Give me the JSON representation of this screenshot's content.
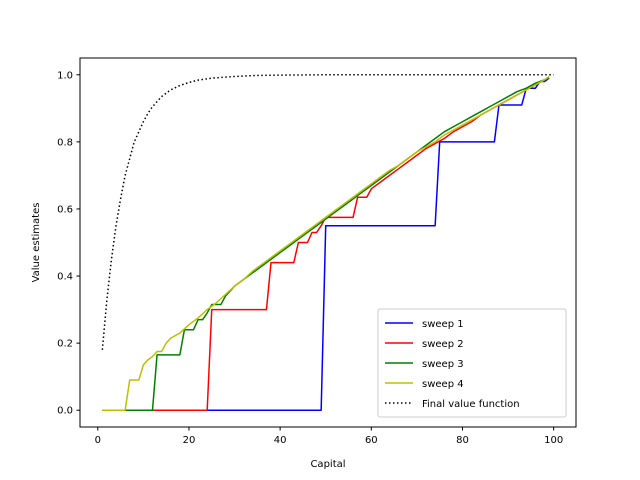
{
  "chart_data": {
    "type": "line",
    "title": "",
    "xlabel": "Capital",
    "ylabel": "Value estimates",
    "xlim": [
      -3.9,
      104.9
    ],
    "ylim": [
      -0.05,
      1.05
    ],
    "xticks": [
      0,
      20,
      40,
      60,
      80,
      100
    ],
    "yticks": [
      0.0,
      0.2,
      0.4,
      0.6,
      0.8,
      1.0
    ],
    "xtick_labels": [
      "0",
      "20",
      "40",
      "60",
      "80",
      "100"
    ],
    "ytick_labels": [
      "0.0",
      "0.2",
      "0.4",
      "0.6",
      "0.8",
      "1.0"
    ],
    "grid": false,
    "legend_position": "lower-right",
    "series": [
      {
        "name": "sweep 1",
        "color": "#0000ff",
        "style": "solid",
        "points": [
          [
            1,
            0
          ],
          [
            49,
            0
          ],
          [
            50,
            0.55
          ],
          [
            74,
            0.55
          ],
          [
            75,
            0.8
          ],
          [
            87,
            0.8
          ],
          [
            88,
            0.91
          ],
          [
            93,
            0.91
          ],
          [
            94,
            0.96
          ],
          [
            96,
            0.96
          ],
          [
            97,
            0.98
          ],
          [
            98,
            0.98
          ],
          [
            99,
            0.99
          ]
        ]
      },
      {
        "name": "sweep 2",
        "color": "#ff0000",
        "style": "solid",
        "points": [
          [
            1,
            0
          ],
          [
            24,
            0
          ],
          [
            25,
            0.3
          ],
          [
            37,
            0.3
          ],
          [
            38,
            0.44
          ],
          [
            43,
            0.44
          ],
          [
            44,
            0.5
          ],
          [
            46,
            0.5
          ],
          [
            47,
            0.53
          ],
          [
            48,
            0.53
          ],
          [
            49,
            0.55
          ],
          [
            50,
            0.575
          ],
          [
            56,
            0.575
          ],
          [
            57,
            0.635
          ],
          [
            59,
            0.635
          ],
          [
            60,
            0.66
          ],
          [
            62,
            0.68
          ],
          [
            64,
            0.7
          ],
          [
            66,
            0.72
          ],
          [
            68,
            0.74
          ],
          [
            70,
            0.76
          ],
          [
            72,
            0.78
          ],
          [
            74,
            0.795
          ],
          [
            76,
            0.81
          ],
          [
            78,
            0.83
          ],
          [
            80,
            0.845
          ],
          [
            82,
            0.86
          ],
          [
            84,
            0.88
          ],
          [
            86,
            0.895
          ],
          [
            88,
            0.91
          ],
          [
            90,
            0.925
          ],
          [
            92,
            0.94
          ],
          [
            94,
            0.955
          ],
          [
            96,
            0.97
          ],
          [
            98,
            0.985
          ],
          [
            99,
            0.99
          ]
        ]
      },
      {
        "name": "sweep 3",
        "color": "#008000",
        "style": "solid",
        "points": [
          [
            1,
            0
          ],
          [
            12,
            0
          ],
          [
            13,
            0.165
          ],
          [
            18,
            0.165
          ],
          [
            19,
            0.24
          ],
          [
            21,
            0.24
          ],
          [
            22,
            0.27
          ],
          [
            23,
            0.27
          ],
          [
            24,
            0.29
          ],
          [
            25,
            0.315
          ],
          [
            27,
            0.315
          ],
          [
            28,
            0.34
          ],
          [
            30,
            0.37
          ],
          [
            32,
            0.39
          ],
          [
            34,
            0.41
          ],
          [
            36,
            0.43
          ],
          [
            38,
            0.45
          ],
          [
            40,
            0.47
          ],
          [
            42,
            0.49
          ],
          [
            44,
            0.51
          ],
          [
            46,
            0.53
          ],
          [
            48,
            0.55
          ],
          [
            50,
            0.57
          ],
          [
            52,
            0.59
          ],
          [
            54,
            0.61
          ],
          [
            56,
            0.63
          ],
          [
            58,
            0.65
          ],
          [
            60,
            0.67
          ],
          [
            62,
            0.69
          ],
          [
            64,
            0.71
          ],
          [
            66,
            0.73
          ],
          [
            68,
            0.75
          ],
          [
            70,
            0.77
          ],
          [
            72,
            0.79
          ],
          [
            74,
            0.81
          ],
          [
            76,
            0.83
          ],
          [
            78,
            0.845
          ],
          [
            80,
            0.86
          ],
          [
            82,
            0.875
          ],
          [
            84,
            0.89
          ],
          [
            86,
            0.905
          ],
          [
            88,
            0.92
          ],
          [
            90,
            0.935
          ],
          [
            92,
            0.95
          ],
          [
            94,
            0.96
          ],
          [
            96,
            0.975
          ],
          [
            98,
            0.985
          ],
          [
            99,
            0.99
          ]
        ]
      },
      {
        "name": "sweep 4",
        "color": "#bfbf00",
        "style": "solid",
        "points": [
          [
            1,
            0
          ],
          [
            6,
            0
          ],
          [
            7,
            0.09
          ],
          [
            9,
            0.09
          ],
          [
            10,
            0.135
          ],
          [
            11,
            0.15
          ],
          [
            12,
            0.16
          ],
          [
            13,
            0.175
          ],
          [
            14,
            0.175
          ],
          [
            15,
            0.2
          ],
          [
            16,
            0.215
          ],
          [
            18,
            0.23
          ],
          [
            20,
            0.255
          ],
          [
            22,
            0.275
          ],
          [
            24,
            0.3
          ],
          [
            26,
            0.32
          ],
          [
            28,
            0.345
          ],
          [
            30,
            0.37
          ],
          [
            32,
            0.39
          ],
          [
            34,
            0.415
          ],
          [
            36,
            0.435
          ],
          [
            38,
            0.455
          ],
          [
            40,
            0.475
          ],
          [
            42,
            0.495
          ],
          [
            44,
            0.515
          ],
          [
            46,
            0.535
          ],
          [
            48,
            0.555
          ],
          [
            50,
            0.575
          ],
          [
            52,
            0.595
          ],
          [
            54,
            0.615
          ],
          [
            56,
            0.635
          ],
          [
            58,
            0.655
          ],
          [
            60,
            0.675
          ],
          [
            62,
            0.695
          ],
          [
            64,
            0.715
          ],
          [
            66,
            0.73
          ],
          [
            68,
            0.75
          ],
          [
            70,
            0.77
          ],
          [
            72,
            0.785
          ],
          [
            74,
            0.8
          ],
          [
            76,
            0.82
          ],
          [
            78,
            0.835
          ],
          [
            80,
            0.85
          ],
          [
            82,
            0.865
          ],
          [
            84,
            0.88
          ],
          [
            86,
            0.895
          ],
          [
            88,
            0.91
          ],
          [
            90,
            0.925
          ],
          [
            92,
            0.94
          ],
          [
            94,
            0.955
          ],
          [
            96,
            0.97
          ],
          [
            98,
            0.985
          ],
          [
            99,
            0.995
          ]
        ]
      },
      {
        "name": "Final value function",
        "color": "#000000",
        "style": "dotted",
        "points": [
          [
            1,
            0.18
          ],
          [
            2,
            0.33
          ],
          [
            3,
            0.45
          ],
          [
            4,
            0.55
          ],
          [
            5,
            0.63
          ],
          [
            6,
            0.7
          ],
          [
            7,
            0.75
          ],
          [
            8,
            0.8
          ],
          [
            9,
            0.83
          ],
          [
            10,
            0.86
          ],
          [
            11,
            0.885
          ],
          [
            12,
            0.905
          ],
          [
            13,
            0.92
          ],
          [
            14,
            0.935
          ],
          [
            15,
            0.945
          ],
          [
            16,
            0.955
          ],
          [
            18,
            0.968
          ],
          [
            20,
            0.977
          ],
          [
            22,
            0.984
          ],
          [
            25,
            0.99
          ],
          [
            30,
            0.995
          ],
          [
            35,
            0.998
          ],
          [
            40,
            0.999
          ],
          [
            50,
            1.0
          ],
          [
            100,
            1.0
          ]
        ]
      }
    ]
  }
}
